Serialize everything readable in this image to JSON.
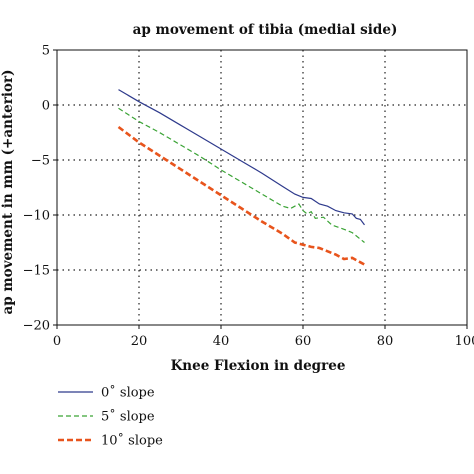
{
  "chart_data": {
    "type": "line",
    "title": "ap movement of tibia (medial side)",
    "xlabel": "Knee Flexion in degree",
    "ylabel": "ap movement in mm (+anterior)",
    "xlim": [
      0,
      100
    ],
    "ylim": [
      -20,
      5
    ],
    "xticks": [
      0,
      20,
      40,
      60,
      80,
      100
    ],
    "yticks": [
      5,
      0,
      -5,
      -10,
      -15,
      -20
    ],
    "xtick_labels": [
      "0",
      "20",
      "40",
      "60",
      "80",
      "100"
    ],
    "ytick_labels": [
      "5",
      "0",
      "−5",
      "−10",
      "−15",
      "−20"
    ],
    "grid": true,
    "legend_position": "below",
    "series": [
      {
        "name": "0˚ slope",
        "color": "#2e3a8c",
        "dash": "solid",
        "x": [
          15,
          20,
          25,
          30,
          35,
          40,
          45,
          50,
          55,
          58,
          60,
          62,
          64,
          66,
          68,
          70,
          72,
          73,
          74,
          75
        ],
        "y": [
          1.4,
          0.3,
          -0.7,
          -1.8,
          -2.9,
          -4.0,
          -5.1,
          -6.2,
          -7.4,
          -8.1,
          -8.4,
          -8.5,
          -9.0,
          -9.2,
          -9.6,
          -9.8,
          -9.9,
          -10.3,
          -10.4,
          -10.9
        ]
      },
      {
        "name": "5˚ slope",
        "color": "#3aa335",
        "dash": "dashed",
        "x": [
          15,
          20,
          25,
          30,
          35,
          40,
          45,
          50,
          55,
          57,
          59,
          60,
          61,
          62,
          63,
          65,
          67,
          70,
          72,
          75
        ],
        "y": [
          -0.3,
          -1.5,
          -2.5,
          -3.6,
          -4.7,
          -5.9,
          -7.0,
          -8.1,
          -9.2,
          -9.4,
          -9.0,
          -9.6,
          -9.9,
          -9.7,
          -10.3,
          -10.2,
          -10.9,
          -11.3,
          -11.6,
          -12.5
        ]
      },
      {
        "name": "10˚ slope",
        "color": "#e8541c",
        "dash": "dashed",
        "x": [
          15,
          20,
          25,
          30,
          35,
          40,
          45,
          50,
          55,
          58,
          60,
          62,
          64,
          66,
          68,
          70,
          72,
          74,
          75
        ],
        "y": [
          -2.0,
          -3.4,
          -4.6,
          -5.8,
          -7.0,
          -8.2,
          -9.4,
          -10.6,
          -11.7,
          -12.5,
          -12.7,
          -12.9,
          -13.0,
          -13.3,
          -13.6,
          -14.0,
          -13.9,
          -14.3,
          -14.5
        ]
      }
    ]
  }
}
